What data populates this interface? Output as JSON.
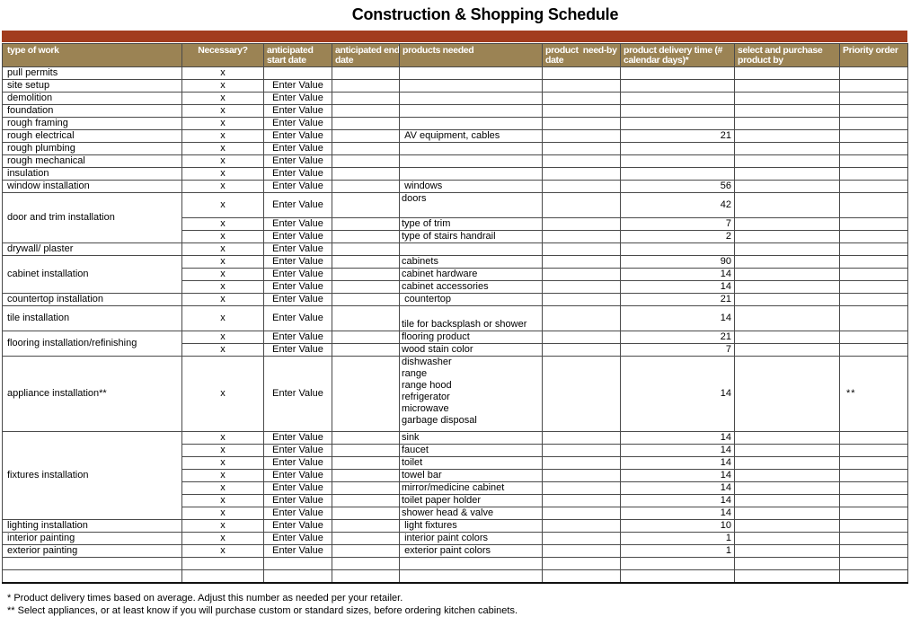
{
  "title": "Construction & Shopping Schedule",
  "colors": {
    "accent_bar": "#a23c1e",
    "header_bg": "#9b8354",
    "header_text": "#ffffff",
    "grid_line": "#4a4a4a"
  },
  "columns": [
    {
      "label": "type of work"
    },
    {
      "label": "Necessary?"
    },
    {
      "label": "anticipated\nstart date"
    },
    {
      "label": "anticipated end\ndate"
    },
    {
      "label": "products needed"
    },
    {
      "label": "product  need-by\ndate"
    },
    {
      "label": "product delivery time (#\ncalendar days)*"
    },
    {
      "label": "select and purchase\nproduct by"
    },
    {
      "label": "Priority order"
    }
  ],
  "rows": [
    {
      "type": "pull permits",
      "necessary": "x"
    },
    {
      "type": "site setup",
      "necessary": "x",
      "start_date": "Enter Value"
    },
    {
      "type": "demolition",
      "necessary": "x",
      "start_date": "Enter Value"
    },
    {
      "type": "foundation",
      "necessary": "x",
      "start_date": "Enter Value"
    },
    {
      "type": "rough framing",
      "necessary": "x",
      "start_date": "Enter Value"
    },
    {
      "type": "rough electrical",
      "necessary": "x",
      "start_date": "Enter Value",
      "products": " AV equipment, cables",
      "delivery": "21"
    },
    {
      "type": "rough plumbing",
      "necessary": "x",
      "start_date": "Enter Value"
    },
    {
      "type": "rough mechanical",
      "necessary": "x",
      "start_date": "Enter Value"
    },
    {
      "type": "insulation",
      "necessary": "x",
      "start_date": "Enter Value"
    },
    {
      "type": "window installation",
      "necessary": "x",
      "start_date": "Enter Value",
      "products": " windows",
      "delivery": "56"
    },
    {
      "type": "door and trim installation",
      "type_span": 3,
      "necessary": "x",
      "start_date": "Enter Value",
      "products": "doors",
      "products_align": "top",
      "delivery": "42",
      "height": 28
    },
    {
      "type_covered": true,
      "necessary": "x",
      "start_date": "Enter Value",
      "products": "type of trim",
      "delivery": "7"
    },
    {
      "type_covered": true,
      "necessary": "x",
      "start_date": "Enter Value",
      "products": "type of stairs handrail",
      "delivery": "2"
    },
    {
      "type": "drywall/ plaster",
      "necessary": "x",
      "start_date": "Enter Value"
    },
    {
      "type": "cabinet installation",
      "type_span": 3,
      "necessary": "x",
      "start_date": "Enter Value",
      "products": "cabinets",
      "delivery": "90"
    },
    {
      "type_covered": true,
      "necessary": "x",
      "start_date": "Enter Value",
      "products": "cabinet hardware",
      "delivery": "14"
    },
    {
      "type_covered": true,
      "necessary": "x",
      "start_date": "Enter Value",
      "products": "cabinet accessories",
      "delivery": "14"
    },
    {
      "type": "countertop installation",
      "necessary": "x",
      "start_date": "Enter Value",
      "products": " countertop",
      "delivery": "21"
    },
    {
      "type": "tile installation",
      "necessary": "x",
      "start_date": "Enter Value",
      "products": "tile for backsplash or shower",
      "products_align": "bottom",
      "delivery": "14",
      "height": 28
    },
    {
      "type": "flooring installation/refinishing",
      "type_span": 2,
      "necessary": "x",
      "start_date": "Enter Value",
      "products": "flooring product",
      "delivery": "21"
    },
    {
      "type_covered": true,
      "necessary": "x",
      "start_date": "Enter Value",
      "products": "wood stain color",
      "delivery": "7"
    },
    {
      "type": "appliance installation**",
      "necessary": "x",
      "start_date": "Enter Value",
      "products": "dishwasher\nrange\nrange hood\nrefrigerator\nmicrowave\ngarbage disposal",
      "products_align": "top",
      "delivery": "14",
      "priority": "**",
      "height": 84
    },
    {
      "type": "fixtures installation",
      "type_span": 7,
      "necessary": "x",
      "start_date": "Enter Value",
      "products": "sink",
      "delivery": "14"
    },
    {
      "type_covered": true,
      "necessary": "x",
      "start_date": "Enter Value",
      "products": "faucet",
      "delivery": "14"
    },
    {
      "type_covered": true,
      "necessary": "x",
      "start_date": "Enter Value",
      "products": "toilet",
      "delivery": "14"
    },
    {
      "type_covered": true,
      "necessary": "x",
      "start_date": "Enter Value",
      "products": "towel bar",
      "delivery": "14"
    },
    {
      "type_covered": true,
      "necessary": "x",
      "start_date": "Enter Value",
      "products": "mirror/medicine cabinet",
      "delivery": "14"
    },
    {
      "type_covered": true,
      "necessary": "x",
      "start_date": "Enter Value",
      "products": "toilet paper holder",
      "delivery": "14"
    },
    {
      "type_covered": true,
      "necessary": "x",
      "start_date": "Enter Value",
      "products": "shower head & valve",
      "delivery": "14"
    },
    {
      "type": "lighting installation",
      "necessary": "x",
      "start_date": "Enter Value",
      "products": " light fixtures",
      "delivery": "10"
    },
    {
      "type": "interior painting",
      "necessary": "x",
      "start_date": "Enter Value",
      "products": " interior paint colors",
      "delivery": "1"
    },
    {
      "type": "exterior painting",
      "necessary": "x",
      "start_date": "Enter Value",
      "products": " exterior paint colors",
      "delivery": "1"
    },
    {
      "type": ""
    },
    {
      "type": ""
    }
  ],
  "footnotes": [
    "* Product delivery times based on average. Adjust this number as needed per your retailer.",
    "** Select appliances, or at least know if you will purchase custom or standard sizes, before ordering kitchen cabinets."
  ]
}
